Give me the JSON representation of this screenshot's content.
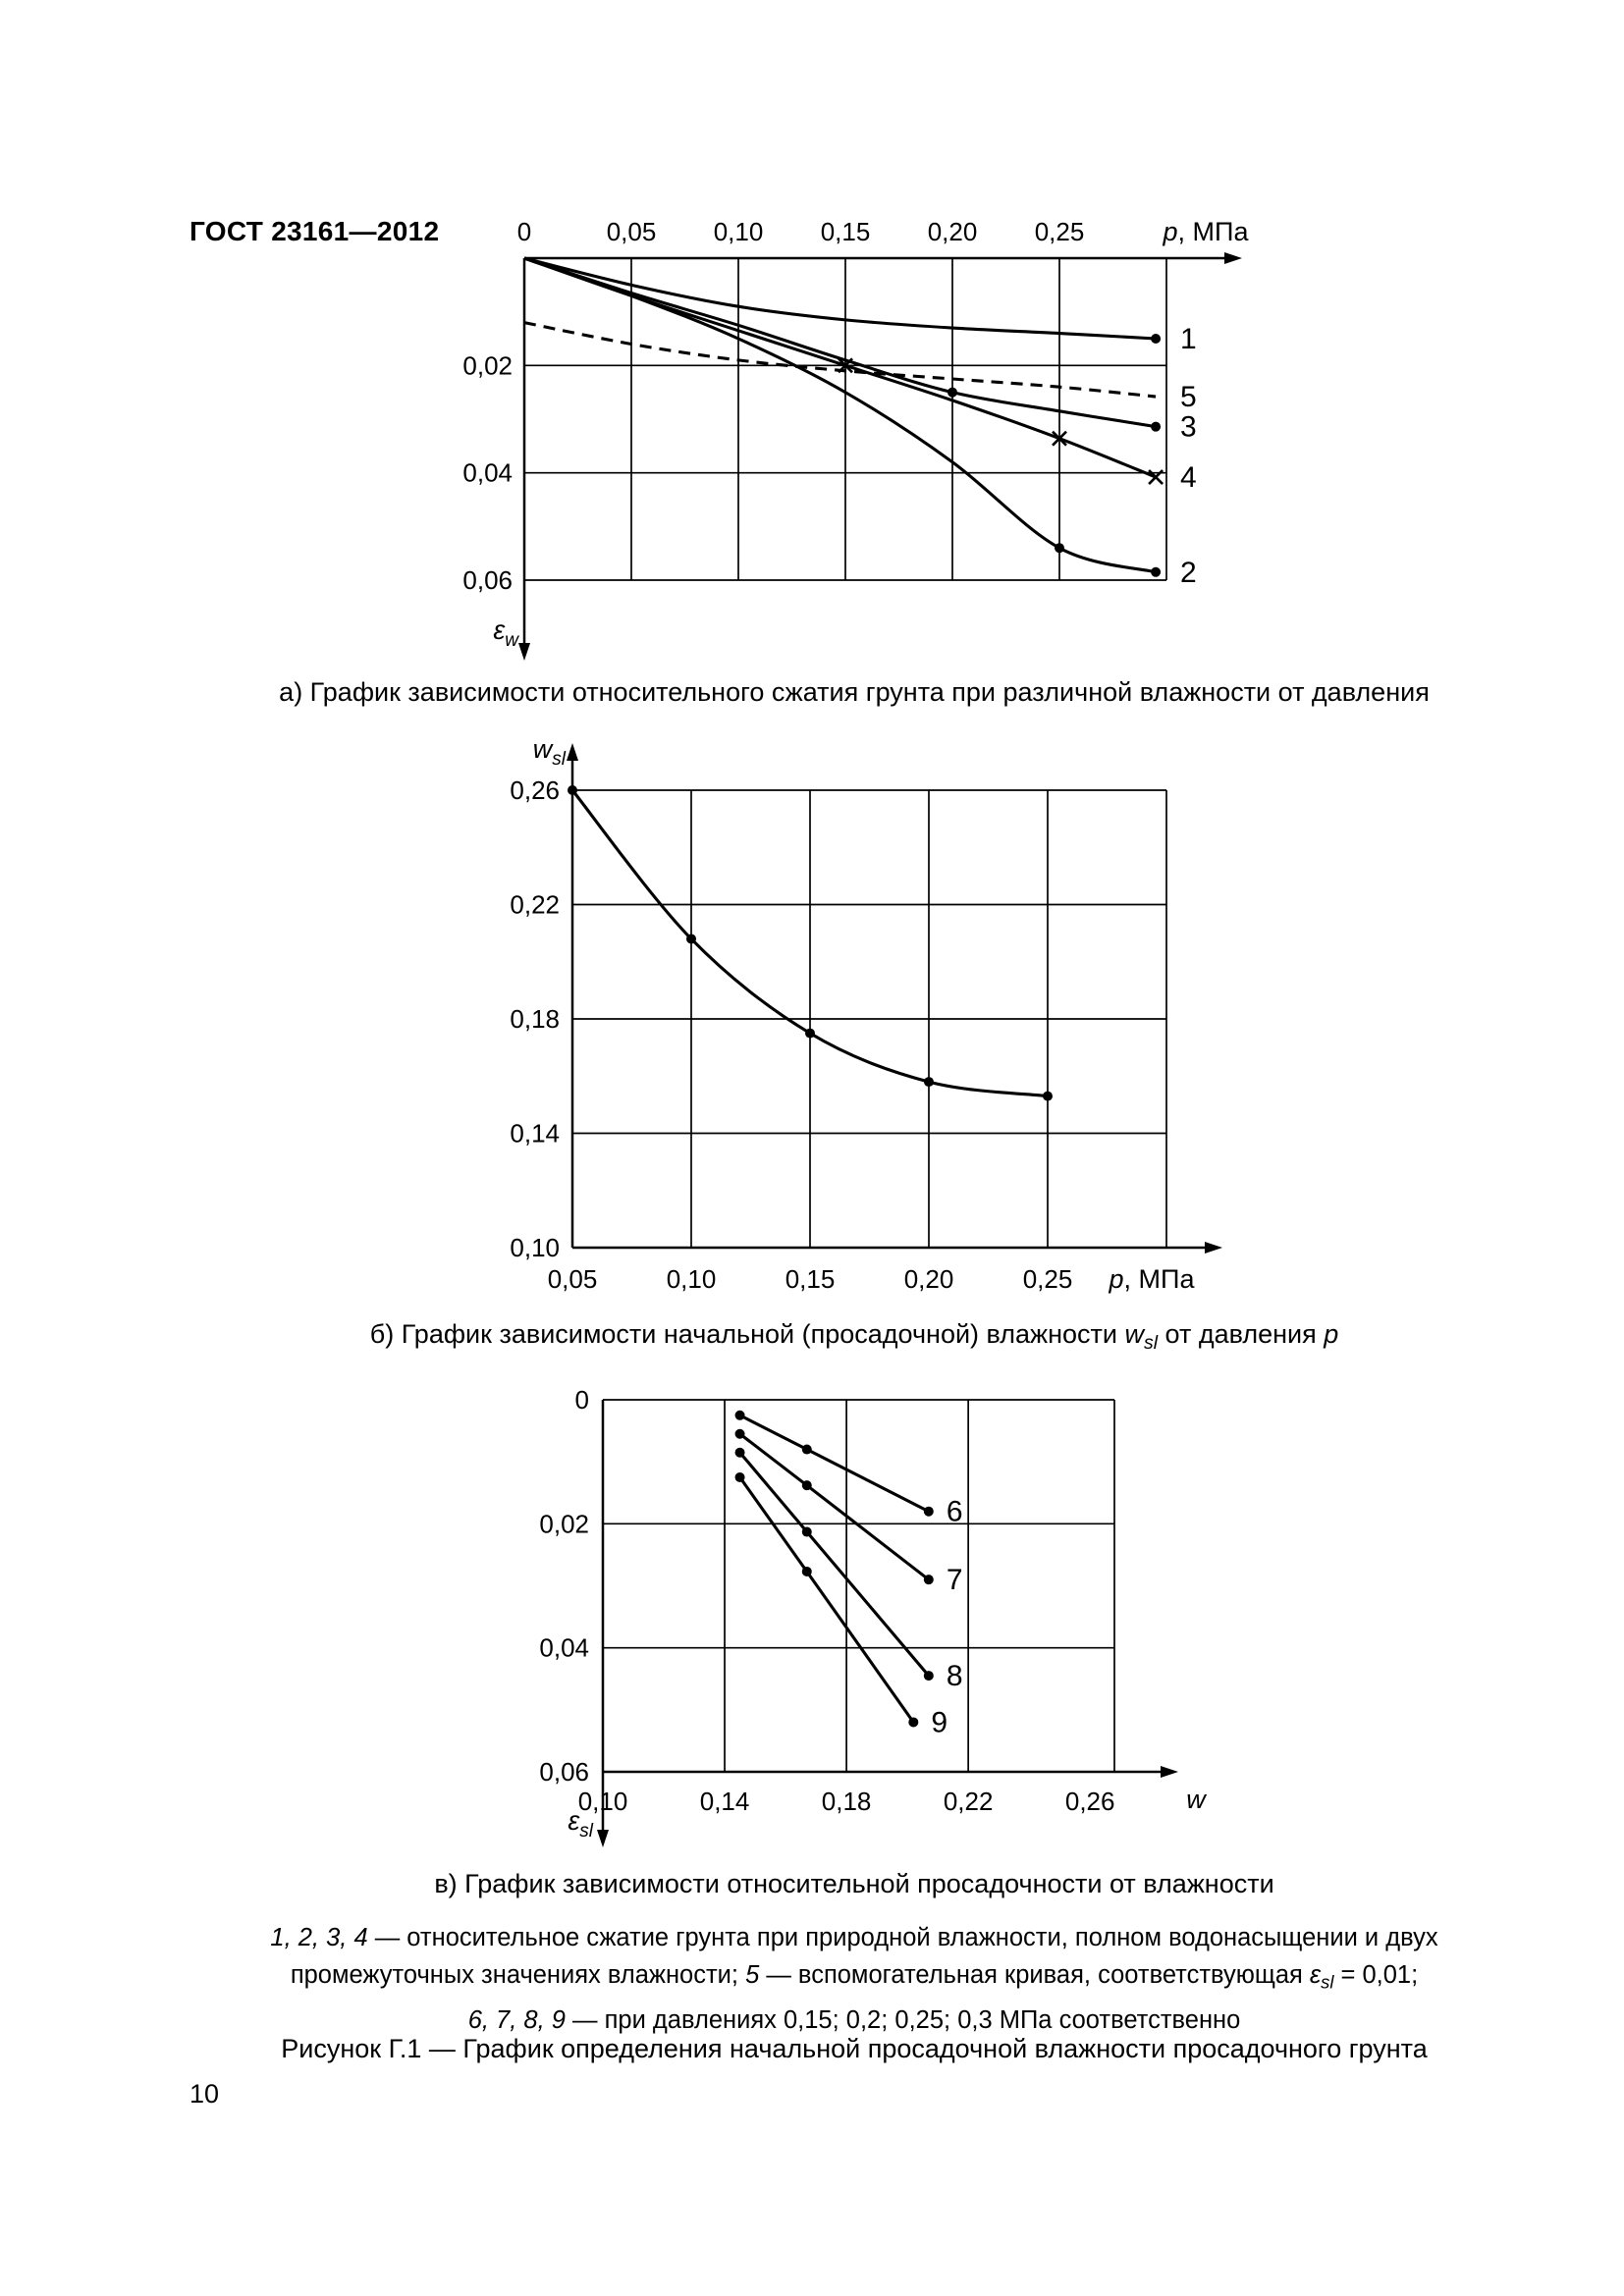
{
  "page": {
    "header": "ГОСТ 23161—2012",
    "page_number": "10",
    "figure_caption": "Рисунок Г.1 — График определения начальной просадочной влажности просадочного грунта"
  },
  "captions": {
    "a": [
      {
        "t": "а) График зависимости относительного сжатия грунта при различной влажности от давления"
      }
    ],
    "b": [
      {
        "t": "б) График зависимости начальной (просадочной) влажности "
      },
      {
        "t": "w",
        "i": 1
      },
      {
        "t": "sl",
        "i": 1,
        "sub": 1
      },
      {
        "t": " от давления "
      },
      {
        "t": "p",
        "i": 1
      }
    ],
    "v": [
      {
        "t": "в) График зависимости относительной просадочности от влажности"
      }
    ]
  },
  "legend_lines": [
    [
      {
        "t": "1, 2, 3, 4",
        "i": 1
      },
      {
        "t": " — относительное сжатие грунта при природной влажности, полном водонасыщении и двух"
      }
    ],
    [
      {
        "t": "промежуточных значениях влажности; "
      },
      {
        "t": "5",
        "i": 1
      },
      {
        "t": " — вспомогательная кривая, соответствующая "
      },
      {
        "t": "ε",
        "i": 1
      },
      {
        "t": "sl",
        "i": 1,
        "sub": 1
      },
      {
        "t": " = 0,01;"
      }
    ],
    [
      {
        "t": "6, 7, 8, 9",
        "i": 1
      },
      {
        "t": " — при давлениях 0,15; 0,2; 0,25; 0,3 МПа соответственно"
      }
    ]
  ],
  "chart_data": [
    {
      "id": "chart-a",
      "type": "line",
      "title": "а) относительное сжатие грунта от давления",
      "x": {
        "label": [
          {
            "t": "p",
            "i": 1
          },
          {
            "t": ", МПа"
          }
        ],
        "min": 0,
        "max": 0.3,
        "ticks": [
          {
            "v": 0,
            "t": "0"
          },
          {
            "v": 0.05,
            "t": "0,05"
          },
          {
            "v": 0.1,
            "t": "0,10"
          },
          {
            "v": 0.15,
            "t": "0,15"
          },
          {
            "v": 0.2,
            "t": "0,20"
          },
          {
            "v": 0.25,
            "t": "0,25"
          }
        ],
        "grid": [
          0.05,
          0.1,
          0.15,
          0.2,
          0.25,
          0.3
        ]
      },
      "y": {
        "label": [
          {
            "t": "ε",
            "i": 1
          },
          {
            "t": "w",
            "i": 1,
            "sub": 1
          }
        ],
        "min": 0,
        "max": 0.06,
        "down": true,
        "ticks": [
          {
            "v": 0.02,
            "t": "0,02"
          },
          {
            "v": 0.04,
            "t": "0,04"
          },
          {
            "v": 0.06,
            "t": "0,06"
          }
        ],
        "grid": [
          0.02,
          0.04,
          0.06
        ]
      },
      "series": [
        {
          "name": "1",
          "label": "1",
          "smooth": true,
          "marker": "dot",
          "marker_at": [
            6
          ],
          "points": [
            [
              0,
              0
            ],
            [
              0.05,
              0.005
            ],
            [
              0.1,
              0.009
            ],
            [
              0.15,
              0.0115
            ],
            [
              0.2,
              0.013
            ],
            [
              0.25,
              0.014
            ],
            [
              0.295,
              0.015
            ]
          ]
        },
        {
          "name": "5",
          "label": "5",
          "smooth": true,
          "dash": true,
          "points": [
            [
              0,
              0.012
            ],
            [
              0.05,
              0.016
            ],
            [
              0.1,
              0.019
            ],
            [
              0.15,
              0.021
            ],
            [
              0.2,
              0.0225
            ],
            [
              0.25,
              0.024
            ],
            [
              0.295,
              0.0258
            ]
          ]
        },
        {
          "name": "3",
          "label": "3",
          "smooth": true,
          "marker": "dot",
          "marker_at": [
            4,
            6
          ],
          "points": [
            [
              0,
              0
            ],
            [
              0.05,
              0.0065
            ],
            [
              0.1,
              0.0125
            ],
            [
              0.15,
              0.019
            ],
            [
              0.2,
              0.025
            ],
            [
              0.25,
              0.0285
            ],
            [
              0.295,
              0.0314
            ]
          ]
        },
        {
          "name": "4",
          "label": "4",
          "smooth": true,
          "marker": "x",
          "marker_at": [
            3,
            5,
            6
          ],
          "points": [
            [
              0,
              0
            ],
            [
              0.05,
              0.007
            ],
            [
              0.1,
              0.0135
            ],
            [
              0.15,
              0.02
            ],
            [
              0.2,
              0.0265
            ],
            [
              0.25,
              0.0336
            ],
            [
              0.295,
              0.0408
            ]
          ]
        },
        {
          "name": "2",
          "label": "2",
          "smooth": true,
          "marker": "dot",
          "marker_at": [
            5,
            6
          ],
          "points": [
            [
              0,
              0
            ],
            [
              0.05,
              0.007
            ],
            [
              0.1,
              0.015
            ],
            [
              0.15,
              0.025
            ],
            [
              0.2,
              0.038
            ],
            [
              0.25,
              0.054
            ],
            [
              0.295,
              0.0585
            ]
          ]
        }
      ]
    },
    {
      "id": "chart-b",
      "type": "line",
      "title": "б) начальная (просадочная) влажность от давления",
      "x": {
        "label": [
          {
            "t": "p",
            "i": 1
          },
          {
            "t": ", МПа"
          }
        ],
        "min": 0.05,
        "max": 0.3,
        "ticks": [
          {
            "v": 0.05,
            "t": "0,05"
          },
          {
            "v": 0.1,
            "t": "0,10"
          },
          {
            "v": 0.15,
            "t": "0,15"
          },
          {
            "v": 0.2,
            "t": "0,20"
          },
          {
            "v": 0.25,
            "t": "0,25"
          }
        ],
        "grid": [
          0.1,
          0.15,
          0.2,
          0.25,
          0.3
        ]
      },
      "y": {
        "label": [
          {
            "t": "w",
            "i": 1
          },
          {
            "t": "sl",
            "i": 1,
            "sub": 1
          }
        ],
        "min": 0.1,
        "max": 0.26,
        "down": false,
        "ticks": [
          {
            "v": 0.26,
            "t": "0,26"
          },
          {
            "v": 0.22,
            "t": "0,22"
          },
          {
            "v": 0.18,
            "t": "0,18"
          },
          {
            "v": 0.14,
            "t": "0,14"
          },
          {
            "v": 0.1,
            "t": "0,10"
          }
        ],
        "grid": [
          0.14,
          0.18,
          0.22,
          0.26
        ]
      },
      "series": [
        {
          "name": "w_sl",
          "smooth": true,
          "marker": "dot",
          "marker_at": [
            0,
            1,
            2,
            3,
            4
          ],
          "points": [
            [
              0.05,
              0.26
            ],
            [
              0.1,
              0.208
            ],
            [
              0.15,
              0.175
            ],
            [
              0.2,
              0.158
            ],
            [
              0.25,
              0.153
            ]
          ]
        }
      ]
    },
    {
      "id": "chart-v",
      "type": "line",
      "title": "в) относительная просадочность от влажности",
      "x": {
        "label": [
          {
            "t": "w",
            "i": 1
          }
        ],
        "min": 0.1,
        "max": 0.268,
        "ticks": [
          {
            "v": 0.1,
            "t": "0,10"
          },
          {
            "v": 0.14,
            "t": "0,14"
          },
          {
            "v": 0.18,
            "t": "0,18"
          },
          {
            "v": 0.22,
            "t": "0,22"
          },
          {
            "v": 0.26,
            "t": "0,26"
          }
        ],
        "grid": [
          0.14,
          0.18,
          0.22,
          0.268
        ]
      },
      "y": {
        "label": [
          {
            "t": "ε",
            "i": 1
          },
          {
            "t": "sl",
            "i": 1,
            "sub": 1
          }
        ],
        "min": 0,
        "max": 0.06,
        "down": true,
        "ticks": [
          {
            "v": 0,
            "t": "0"
          },
          {
            "v": 0.02,
            "t": "0,02"
          },
          {
            "v": 0.04,
            "t": "0,04"
          },
          {
            "v": 0.06,
            "t": "0,06"
          }
        ],
        "grid": [
          0,
          0.02,
          0.04
        ]
      },
      "series": [
        {
          "name": "6",
          "label": "6",
          "marker": "dot",
          "marker_at": [
            0,
            1,
            2
          ],
          "points": [
            [
              0.145,
              0.0025
            ],
            [
              0.167,
              0.008
            ],
            [
              0.207,
              0.018
            ]
          ]
        },
        {
          "name": "7",
          "label": "7",
          "marker": "dot",
          "marker_at": [
            0,
            1,
            2
          ],
          "points": [
            [
              0.145,
              0.0055
            ],
            [
              0.167,
              0.0138
            ],
            [
              0.207,
              0.029
            ]
          ]
        },
        {
          "name": "8",
          "label": "8",
          "marker": "dot",
          "marker_at": [
            0,
            1,
            2
          ],
          "points": [
            [
              0.145,
              0.0085
            ],
            [
              0.167,
              0.0213
            ],
            [
              0.207,
              0.0445
            ]
          ]
        },
        {
          "name": "9",
          "label": "9",
          "marker": "dot",
          "marker_at": [
            0,
            1,
            2
          ],
          "points": [
            [
              0.145,
              0.0125
            ],
            [
              0.167,
              0.0277
            ],
            [
              0.202,
              0.052
            ]
          ]
        }
      ]
    }
  ]
}
